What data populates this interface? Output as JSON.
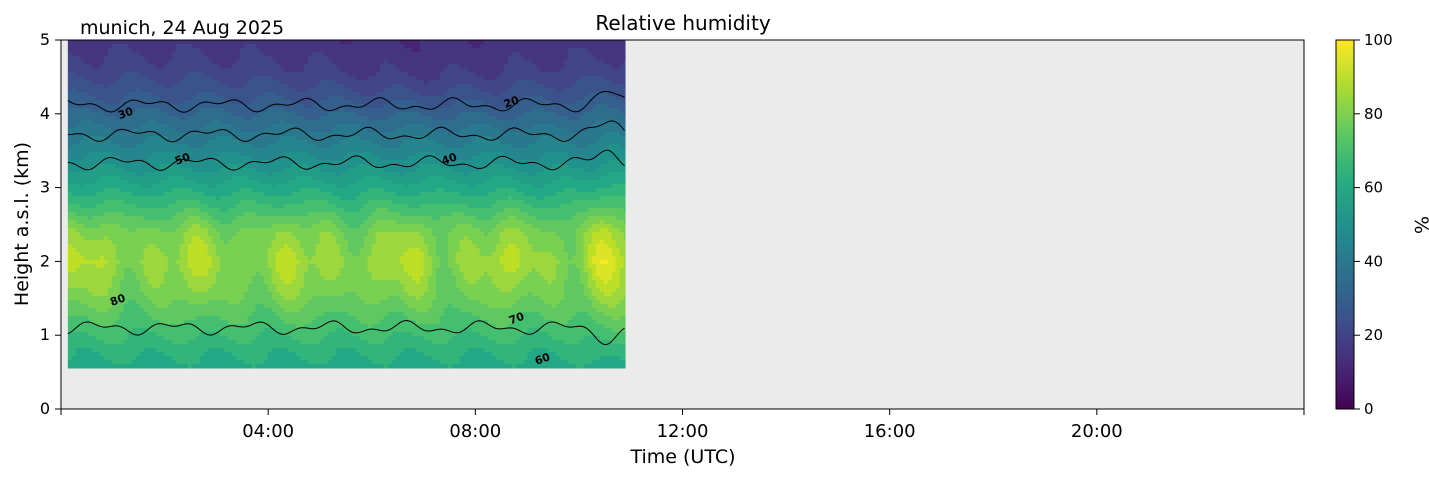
{
  "chart_data": {
    "type": "heatmap",
    "title": "Relative humidity",
    "subtitle": "munich, 24 Aug 2025",
    "xlabel": "Time (UTC)",
    "ylabel": "Height a.s.l. (km)",
    "xlim_hours": [
      0,
      24
    ],
    "ylim_km": [
      0,
      5
    ],
    "x_ticks": [
      {
        "hour": 4,
        "label": "04:00"
      },
      {
        "hour": 8,
        "label": "08:00"
      },
      {
        "hour": 12,
        "label": "12:00"
      },
      {
        "hour": 16,
        "label": "16:00"
      },
      {
        "hour": 20,
        "label": "20:00"
      }
    ],
    "x_minor_ticks_hours": [
      0,
      24
    ],
    "y_ticks": [
      {
        "value": 0,
        "label": "0"
      },
      {
        "value": 1,
        "label": "1"
      },
      {
        "value": 2,
        "label": "2"
      },
      {
        "value": 3,
        "label": "3"
      },
      {
        "value": 4,
        "label": "4"
      },
      {
        "value": 5,
        "label": "5"
      }
    ],
    "data_extent": {
      "x_hours": [
        0.13,
        10.9
      ],
      "y_km": [
        0.55,
        5.0
      ]
    },
    "missing_color": "#ebebeb",
    "colorbar": {
      "label": "%",
      "range": [
        0,
        100
      ],
      "ticks": [
        {
          "value": 0,
          "label": "0"
        },
        {
          "value": 20,
          "label": "20"
        },
        {
          "value": 40,
          "label": "40"
        },
        {
          "value": 60,
          "label": "60"
        },
        {
          "value": 80,
          "label": "80"
        },
        {
          "value": 100,
          "label": "100"
        }
      ],
      "colormap": "viridis"
    },
    "contour_levels": [
      20,
      30,
      40,
      50,
      60,
      70,
      80
    ],
    "contour_labels": [
      {
        "text": "30",
        "hour": 1.25,
        "km": 4.0
      },
      {
        "text": "20",
        "hour": 8.7,
        "km": 4.15
      },
      {
        "text": "50",
        "hour": 2.35,
        "km": 3.38
      },
      {
        "text": "40",
        "hour": 7.5,
        "km": 3.38
      },
      {
        "text": "80",
        "hour": 1.1,
        "km": 1.47
      },
      {
        "text": "70",
        "hour": 8.8,
        "km": 1.22
      },
      {
        "text": "60",
        "hour": 9.3,
        "km": 0.67
      }
    ],
    "profile_rh_by_height": [
      {
        "km": 0.55,
        "rh": 60
      },
      {
        "km": 0.8,
        "rh": 64
      },
      {
        "km": 1.2,
        "rh": 72
      },
      {
        "km": 1.6,
        "rh": 80
      },
      {
        "km": 2.0,
        "rh": 85
      },
      {
        "km": 2.4,
        "rh": 80
      },
      {
        "km": 2.7,
        "rh": 70
      },
      {
        "km": 3.0,
        "rh": 60
      },
      {
        "km": 3.4,
        "rh": 48
      },
      {
        "km": 3.8,
        "rh": 38
      },
      {
        "km": 4.2,
        "rh": 28
      },
      {
        "km": 4.6,
        "rh": 20
      },
      {
        "km": 5.0,
        "rh": 15
      }
    ]
  }
}
